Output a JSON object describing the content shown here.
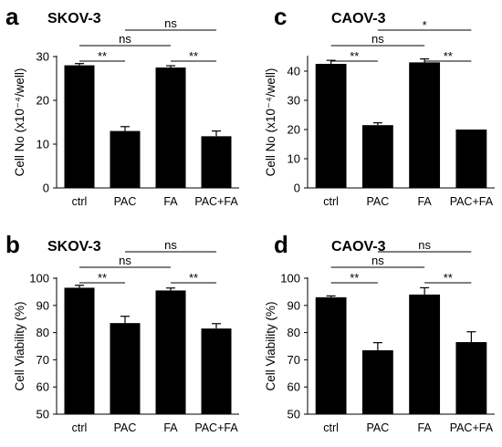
{
  "chart_data": [
    {
      "type": "bar",
      "panel": "a",
      "title": "SKOV-3",
      "ylabel": "Cell No (x10⁻⁴/well)",
      "categories": [
        "ctrl",
        "PAC",
        "FA",
        "PAC+FA"
      ],
      "values": [
        28,
        13,
        27.5,
        11.8
      ],
      "errors": [
        0.4,
        1.0,
        0.4,
        1.2
      ],
      "ylim": [
        0,
        30
      ],
      "yticks": [
        "0",
        "10",
        "20",
        "30"
      ],
      "comparisons": [
        {
          "from": 0,
          "to": 1,
          "label": "**"
        },
        {
          "from": 0,
          "to": 2,
          "label": "ns"
        },
        {
          "from": 2,
          "to": 3,
          "label": "**"
        },
        {
          "from": 1,
          "to": 3,
          "label": "ns"
        }
      ]
    },
    {
      "type": "bar",
      "panel": "c",
      "title": "CAOV-3",
      "ylabel": "Cell No (x10⁻⁴/well)",
      "categories": [
        "ctrl",
        "PAC",
        "FA",
        "PAC+FA"
      ],
      "values": [
        42.5,
        21.5,
        43,
        20
      ],
      "errors": [
        1.2,
        0.8,
        1.2,
        0
      ],
      "ylim": [
        0,
        45
      ],
      "yticks": [
        "0",
        "10",
        "20",
        "30",
        "40"
      ],
      "comparisons": [
        {
          "from": 0,
          "to": 1,
          "label": "**"
        },
        {
          "from": 0,
          "to": 2,
          "label": "ns"
        },
        {
          "from": 2,
          "to": 3,
          "label": "**"
        },
        {
          "from": 1,
          "to": 3,
          "label": "*"
        }
      ]
    },
    {
      "type": "bar",
      "panel": "b",
      "title": "SKOV-3",
      "ylabel": "Cell Viability   (%)",
      "categories": [
        "ctrl",
        "PAC",
        "FA",
        "PAC+FA"
      ],
      "values": [
        96.5,
        83.5,
        95.5,
        81.5
      ],
      "errors": [
        0.9,
        2.5,
        0.9,
        1.8
      ],
      "ylim": [
        50,
        100
      ],
      "yticks": [
        "50",
        "60",
        "70",
        "80",
        "90",
        "100"
      ],
      "comparisons": [
        {
          "from": 0,
          "to": 1,
          "label": "**"
        },
        {
          "from": 0,
          "to": 2,
          "label": "ns"
        },
        {
          "from": 2,
          "to": 3,
          "label": "**"
        },
        {
          "from": 1,
          "to": 3,
          "label": "ns"
        }
      ]
    },
    {
      "type": "bar",
      "panel": "d",
      "title": "CAOV-3",
      "ylabel": "Cell Viability   (%)",
      "categories": [
        "ctrl",
        "PAC",
        "FA",
        "PAC+FA"
      ],
      "values": [
        93,
        73.5,
        94,
        76.5
      ],
      "errors": [
        0.5,
        2.8,
        2.5,
        3.8
      ],
      "ylim": [
        50,
        100
      ],
      "yticks": [
        "50",
        "60",
        "70",
        "80",
        "90",
        "100"
      ],
      "comparisons": [
        {
          "from": 0,
          "to": 1,
          "label": "**"
        },
        {
          "from": 0,
          "to": 2,
          "label": "ns"
        },
        {
          "from": 2,
          "to": 3,
          "label": "**"
        },
        {
          "from": 1,
          "to": 3,
          "label": "ns"
        }
      ]
    }
  ]
}
